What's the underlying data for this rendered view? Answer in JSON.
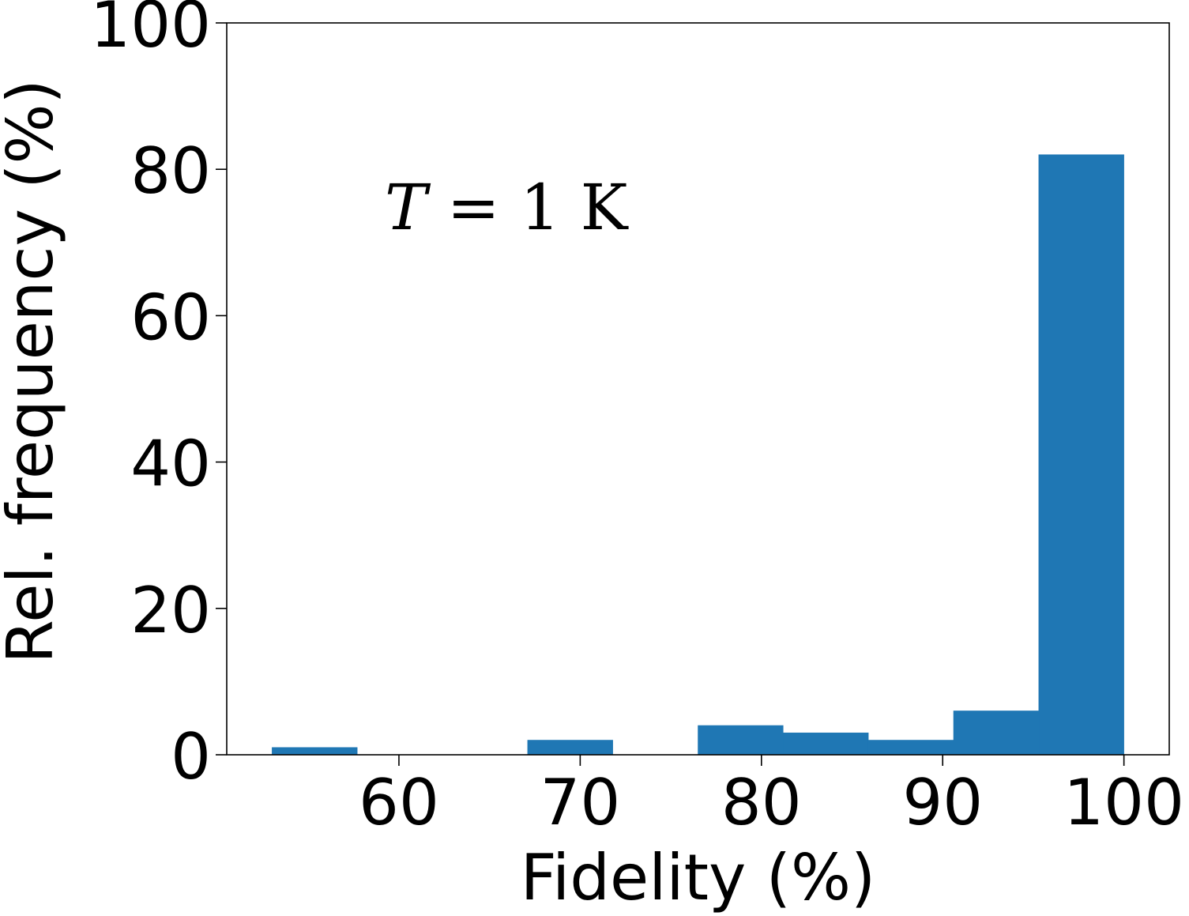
{
  "chart_data": {
    "type": "bar",
    "title": "",
    "xlabel": "Fidelity (%)",
    "ylabel": "Rel. frequency (%)",
    "xlim": [
      50.5,
      102.5
    ],
    "ylim": [
      0,
      100
    ],
    "xticks": [
      60,
      70,
      80,
      90,
      100
    ],
    "yticks": [
      0,
      20,
      40,
      60,
      80,
      100
    ],
    "bar_color": "#1f77b4",
    "grid": false,
    "annotation": {
      "italic_part": "T",
      "upright_part": " = 1 K"
    },
    "bins": [
      {
        "x0": 53.0,
        "x1": 57.7,
        "value": 1
      },
      {
        "x0": 57.7,
        "x1": 62.4,
        "value": 0
      },
      {
        "x0": 62.4,
        "x1": 67.1,
        "value": 0
      },
      {
        "x0": 67.1,
        "x1": 71.8,
        "value": 2
      },
      {
        "x0": 71.8,
        "x1": 76.5,
        "value": 0
      },
      {
        "x0": 76.5,
        "x1": 81.2,
        "value": 4
      },
      {
        "x0": 81.2,
        "x1": 85.9,
        "value": 3
      },
      {
        "x0": 85.9,
        "x1": 90.6,
        "value": 2
      },
      {
        "x0": 90.6,
        "x1": 95.3,
        "value": 6
      },
      {
        "x0": 95.3,
        "x1": 100.0,
        "value": 82
      }
    ]
  }
}
